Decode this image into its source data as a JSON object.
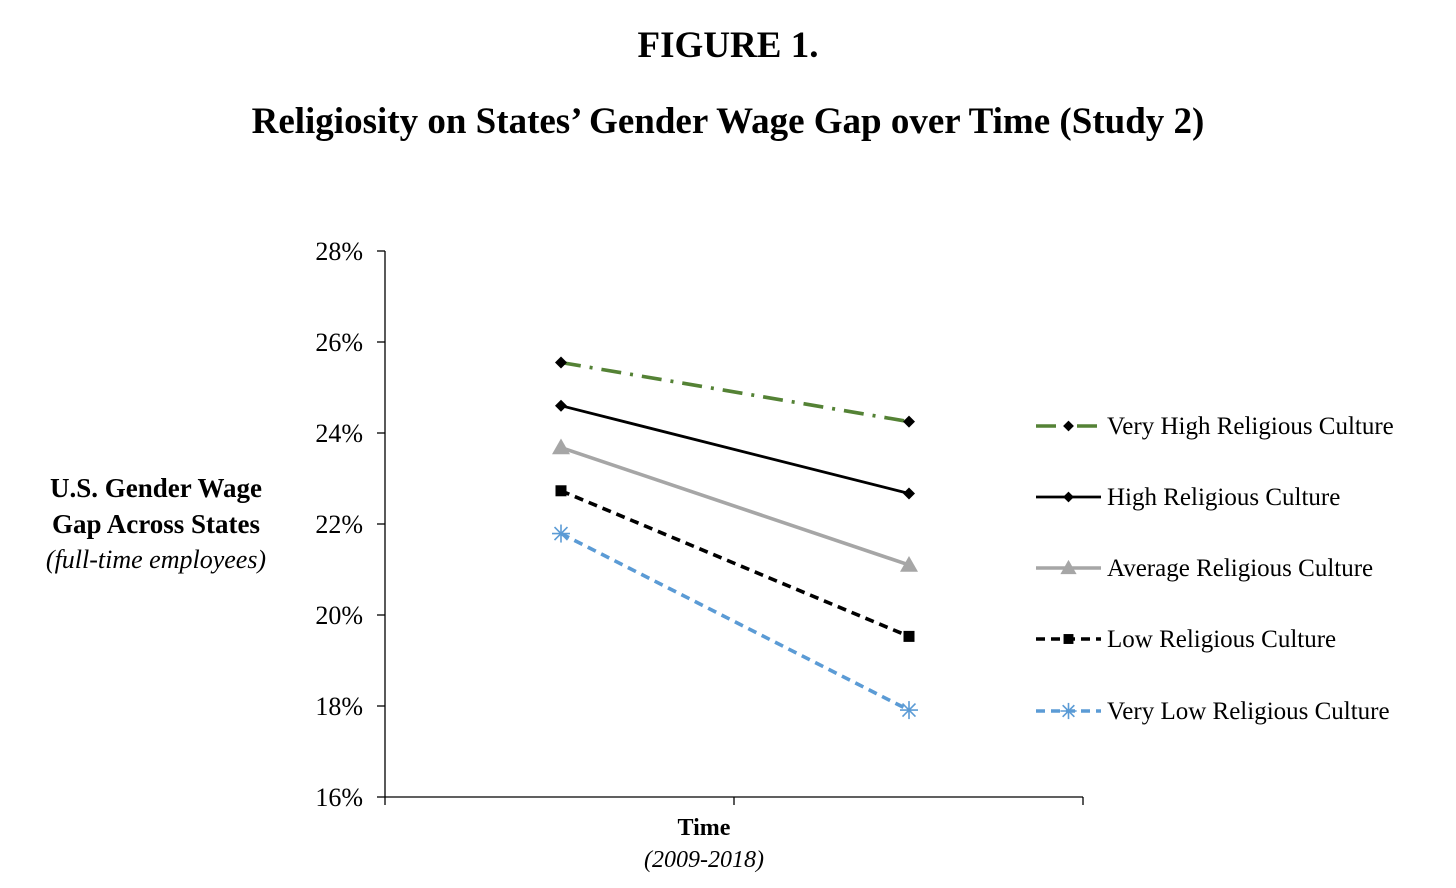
{
  "figure_label": "FIGURE 1.",
  "chart_data": {
    "type": "line",
    "title": "Religiosity on States’ Gender Wage Gap over Time (Study 2)",
    "ylabel_lines": [
      "U.S. Gender Wage",
      "Gap Across States",
      "(full-time employees)"
    ],
    "xlabel": "Time",
    "xlabel_sub": "(2009-2018)",
    "ylim": [
      0.16,
      0.28
    ],
    "y_ticks": [
      0.16,
      0.18,
      0.2,
      0.22,
      0.24,
      0.26,
      0.28
    ],
    "y_tick_labels": [
      "16%",
      "18%",
      "20%",
      "22%",
      "24%",
      "26%",
      "28%"
    ],
    "x_points": 2,
    "grid": false,
    "legend_position": "right",
    "series": [
      {
        "name": "Very High Religious Culture",
        "values": [
          0.2555,
          0.2425
        ],
        "color": "#548235",
        "dash": "dashdot",
        "marker": "diamond",
        "marker_color": "#000000"
      },
      {
        "name": "High Religious Culture",
        "values": [
          0.246,
          0.2267
        ],
        "color": "#000000",
        "dash": "solid",
        "marker": "diamond",
        "marker_color": "#000000"
      },
      {
        "name": "Average Religious Culture",
        "values": [
          0.2368,
          0.211
        ],
        "color": "#a6a6a6",
        "dash": "solid",
        "marker": "triangle",
        "marker_color": "#a6a6a6"
      },
      {
        "name": "Low Religious Culture",
        "values": [
          0.2273,
          0.1953
        ],
        "color": "#000000",
        "dash": "dashed",
        "marker": "square",
        "marker_color": "#000000"
      },
      {
        "name": "Very Low Religious Culture",
        "values": [
          0.2179,
          0.1791
        ],
        "color": "#5b9bd5",
        "dash": "dashed",
        "marker": "star",
        "marker_color": "#5b9bd5"
      }
    ]
  }
}
